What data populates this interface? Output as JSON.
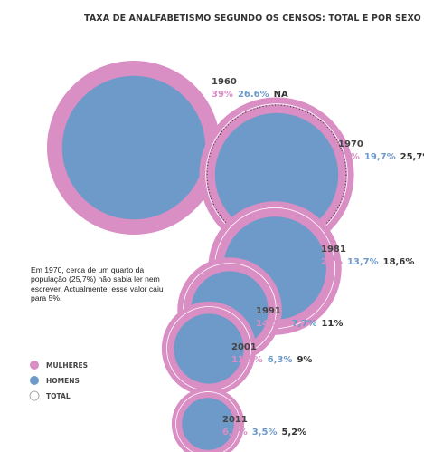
{
  "colors": {
    "women": "#d98ec4",
    "men": "#6d9ac9",
    "total_outline": "#333333",
    "text": "#444444"
  },
  "note": "Em 1970, cerca de um quarto da população (25,7%) não sabia ler nem escrever. Actualmente, esse valor caiu para 5%.",
  "chart_data": {
    "type": "bubble",
    "title": "TAXA DE ANALFABETISMO SEGUNDO OS CENSOS: TOTAL E POR SEXO",
    "legend": {
      "position": "bottom-left",
      "items": [
        "MULHERES",
        "HOMENS",
        "TOTAL"
      ]
    },
    "series": [
      {
        "name": "MULHERES",
        "color": "#d98ec4"
      },
      {
        "name": "HOMENS",
        "color": "#6d9ac9"
      },
      {
        "name": "TOTAL",
        "color": "#ffffff"
      }
    ],
    "points": [
      {
        "year": "1960",
        "women": 39,
        "men": 26.6,
        "total": null,
        "labels": {
          "women": "39%",
          "men": "26.6%",
          "total": "NA"
        }
      },
      {
        "year": "1970",
        "women": 31,
        "men": 19.7,
        "total": 25.7,
        "labels": {
          "women": "31%",
          "men": "19,7%",
          "total": "25,7%"
        }
      },
      {
        "year": "1981",
        "women": 23,
        "men": 13.7,
        "total": 18.6,
        "labels": {
          "women": "23%",
          "men": "13,7%",
          "total": "18,6%"
        }
      },
      {
        "year": "1991",
        "women": 14.1,
        "men": 7.7,
        "total": 11,
        "labels": {
          "women": "14,1%",
          "men": "7,7%",
          "total": "11%"
        }
      },
      {
        "year": "2001",
        "women": 11.5,
        "men": 6.3,
        "total": 9,
        "labels": {
          "women": "11,5%",
          "men": "6,3%",
          "total": "9%"
        }
      },
      {
        "year": "2011",
        "women": 6.8,
        "men": 3.5,
        "total": 5.2,
        "labels": {
          "women": "6,8%",
          "men": "3,5%",
          "total": "5,2%"
        }
      }
    ]
  }
}
